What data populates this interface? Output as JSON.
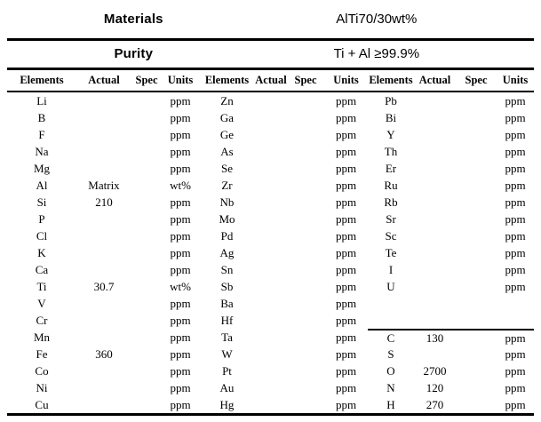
{
  "header": {
    "materials_label": "Materials",
    "materials_value": "AlTi70/30wt%",
    "purity_label": "Purity",
    "purity_value": "Ti + Al ≥99.9%"
  },
  "columns": [
    "Elements",
    "Actual",
    "Spec",
    "Units"
  ],
  "groups": [
    {
      "rows": [
        {
          "element": "Li",
          "actual": "",
          "spec": "",
          "units": "ppm"
        },
        {
          "element": "B",
          "actual": "",
          "spec": "",
          "units": "ppm"
        },
        {
          "element": "F",
          "actual": "",
          "spec": "",
          "units": "ppm"
        },
        {
          "element": "Na",
          "actual": "",
          "spec": "",
          "units": "ppm"
        },
        {
          "element": "Mg",
          "actual": "",
          "spec": "",
          "units": "ppm"
        },
        {
          "element": "Al",
          "actual": "Matrix",
          "spec": "",
          "units": "wt%"
        },
        {
          "element": "Si",
          "actual": "210",
          "spec": "",
          "units": "ppm"
        },
        {
          "element": "P",
          "actual": "",
          "spec": "",
          "units": "ppm"
        },
        {
          "element": "Cl",
          "actual": "",
          "spec": "",
          "units": "ppm"
        },
        {
          "element": "K",
          "actual": "",
          "spec": "",
          "units": "ppm"
        },
        {
          "element": "Ca",
          "actual": "",
          "spec": "",
          "units": "ppm"
        },
        {
          "element": "Ti",
          "actual": "30.7",
          "spec": "",
          "units": "wt%"
        },
        {
          "element": "V",
          "actual": "",
          "spec": "",
          "units": "ppm"
        },
        {
          "element": "Cr",
          "actual": "",
          "spec": "",
          "units": "ppm"
        },
        {
          "element": "Mn",
          "actual": "",
          "spec": "",
          "units": "ppm"
        },
        {
          "element": "Fe",
          "actual": "360",
          "spec": "",
          "units": "ppm"
        },
        {
          "element": "Co",
          "actual": "",
          "spec": "",
          "units": "ppm"
        },
        {
          "element": "Ni",
          "actual": "",
          "spec": "",
          "units": "ppm"
        },
        {
          "element": "Cu",
          "actual": "",
          "spec": "",
          "units": "ppm"
        }
      ]
    },
    {
      "rows": [
        {
          "element": "Zn",
          "actual": "",
          "spec": "",
          "units": "ppm"
        },
        {
          "element": "Ga",
          "actual": "",
          "spec": "",
          "units": "ppm"
        },
        {
          "element": "Ge",
          "actual": "",
          "spec": "",
          "units": "ppm"
        },
        {
          "element": "As",
          "actual": "",
          "spec": "",
          "units": "ppm"
        },
        {
          "element": "Se",
          "actual": "",
          "spec": "",
          "units": "ppm"
        },
        {
          "element": "Zr",
          "actual": "",
          "spec": "",
          "units": "ppm"
        },
        {
          "element": "Nb",
          "actual": "",
          "spec": "",
          "units": "ppm"
        },
        {
          "element": "Mo",
          "actual": "",
          "spec": "",
          "units": "ppm"
        },
        {
          "element": "Pd",
          "actual": "",
          "spec": "",
          "units": "ppm"
        },
        {
          "element": "Ag",
          "actual": "",
          "spec": "",
          "units": "ppm"
        },
        {
          "element": "Sn",
          "actual": "",
          "spec": "",
          "units": "ppm"
        },
        {
          "element": "Sb",
          "actual": "",
          "spec": "",
          "units": "ppm"
        },
        {
          "element": "Ba",
          "actual": "",
          "spec": "",
          "units": "ppm"
        },
        {
          "element": "Hf",
          "actual": "",
          "spec": "",
          "units": "ppm"
        },
        {
          "element": "Ta",
          "actual": "",
          "spec": "",
          "units": "ppm"
        },
        {
          "element": "W",
          "actual": "",
          "spec": "",
          "units": "ppm"
        },
        {
          "element": "Pt",
          "actual": "",
          "spec": "",
          "units": "ppm"
        },
        {
          "element": "Au",
          "actual": "",
          "spec": "",
          "units": "ppm"
        },
        {
          "element": "Hg",
          "actual": "",
          "spec": "",
          "units": "ppm"
        }
      ]
    },
    {
      "rows": [
        {
          "element": "Pb",
          "actual": "",
          "spec": "",
          "units": "ppm"
        },
        {
          "element": "Bi",
          "actual": "",
          "spec": "",
          "units": "ppm"
        },
        {
          "element": "Y",
          "actual": "",
          "spec": "",
          "units": "ppm"
        },
        {
          "element": "Th",
          "actual": "",
          "spec": "",
          "units": "ppm"
        },
        {
          "element": "Er",
          "actual": "",
          "spec": "",
          "units": "ppm"
        },
        {
          "element": "Ru",
          "actual": "",
          "spec": "",
          "units": "ppm"
        },
        {
          "element": "Rb",
          "actual": "",
          "spec": "",
          "units": "ppm"
        },
        {
          "element": "Sr",
          "actual": "",
          "spec": "",
          "units": "ppm"
        },
        {
          "element": "Sc",
          "actual": "",
          "spec": "",
          "units": "ppm"
        },
        {
          "element": "Te",
          "actual": "",
          "spec": "",
          "units": "ppm"
        },
        {
          "element": "I",
          "actual": "",
          "spec": "",
          "units": "ppm"
        },
        {
          "element": "U",
          "actual": "",
          "spec": "",
          "units": "ppm"
        },
        {
          "element": "",
          "actual": "",
          "spec": "",
          "units": ""
        },
        {
          "element": "",
          "actual": "",
          "spec": "",
          "units": ""
        },
        {
          "element": "C",
          "actual": "130",
          "spec": "",
          "units": "ppm",
          "divider_above": true
        },
        {
          "element": "S",
          "actual": "",
          "spec": "",
          "units": "ppm"
        },
        {
          "element": "O",
          "actual": "2700",
          "spec": "",
          "units": "ppm"
        },
        {
          "element": "N",
          "actual": "120",
          "spec": "",
          "units": "ppm"
        },
        {
          "element": "H",
          "actual": "270",
          "spec": "",
          "units": "ppm"
        }
      ]
    }
  ]
}
